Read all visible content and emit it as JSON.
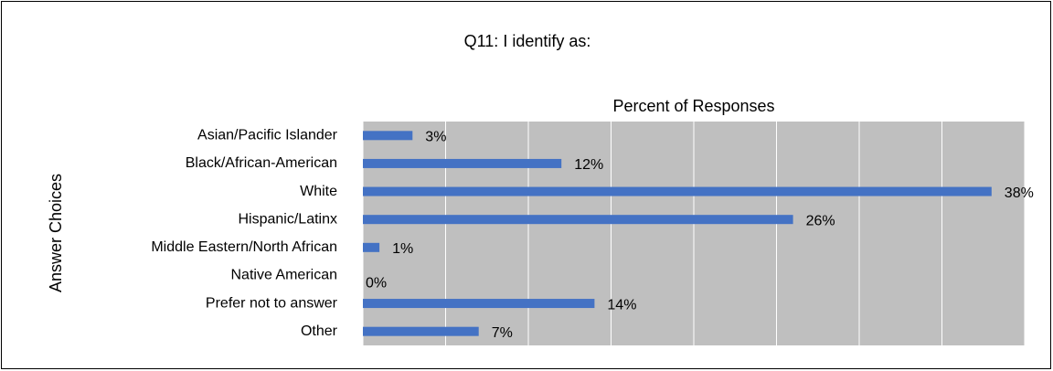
{
  "chart_data": {
    "type": "hbar",
    "title": "Q11: I identify as:",
    "x_label": "Percent of Responses",
    "y_label": "Answer Choices",
    "categories": [
      "Asian/Pacific Islander",
      "Black/African-American",
      "White",
      "Hispanic/Latinx",
      "Middle Eastern/North African",
      "Native American",
      "Prefer not to answer",
      "Other"
    ],
    "values": [
      3,
      12,
      38,
      26,
      1,
      0,
      14,
      7
    ],
    "value_labels": [
      "3%",
      "12%",
      "38%",
      "26%",
      "1%",
      "0%",
      "14%",
      "7%"
    ],
    "color": "#4472c4",
    "xlim": [
      0,
      40
    ],
    "xticks": [
      0,
      5,
      10,
      15,
      20,
      25,
      30,
      35,
      40
    ],
    "grid": true
  }
}
